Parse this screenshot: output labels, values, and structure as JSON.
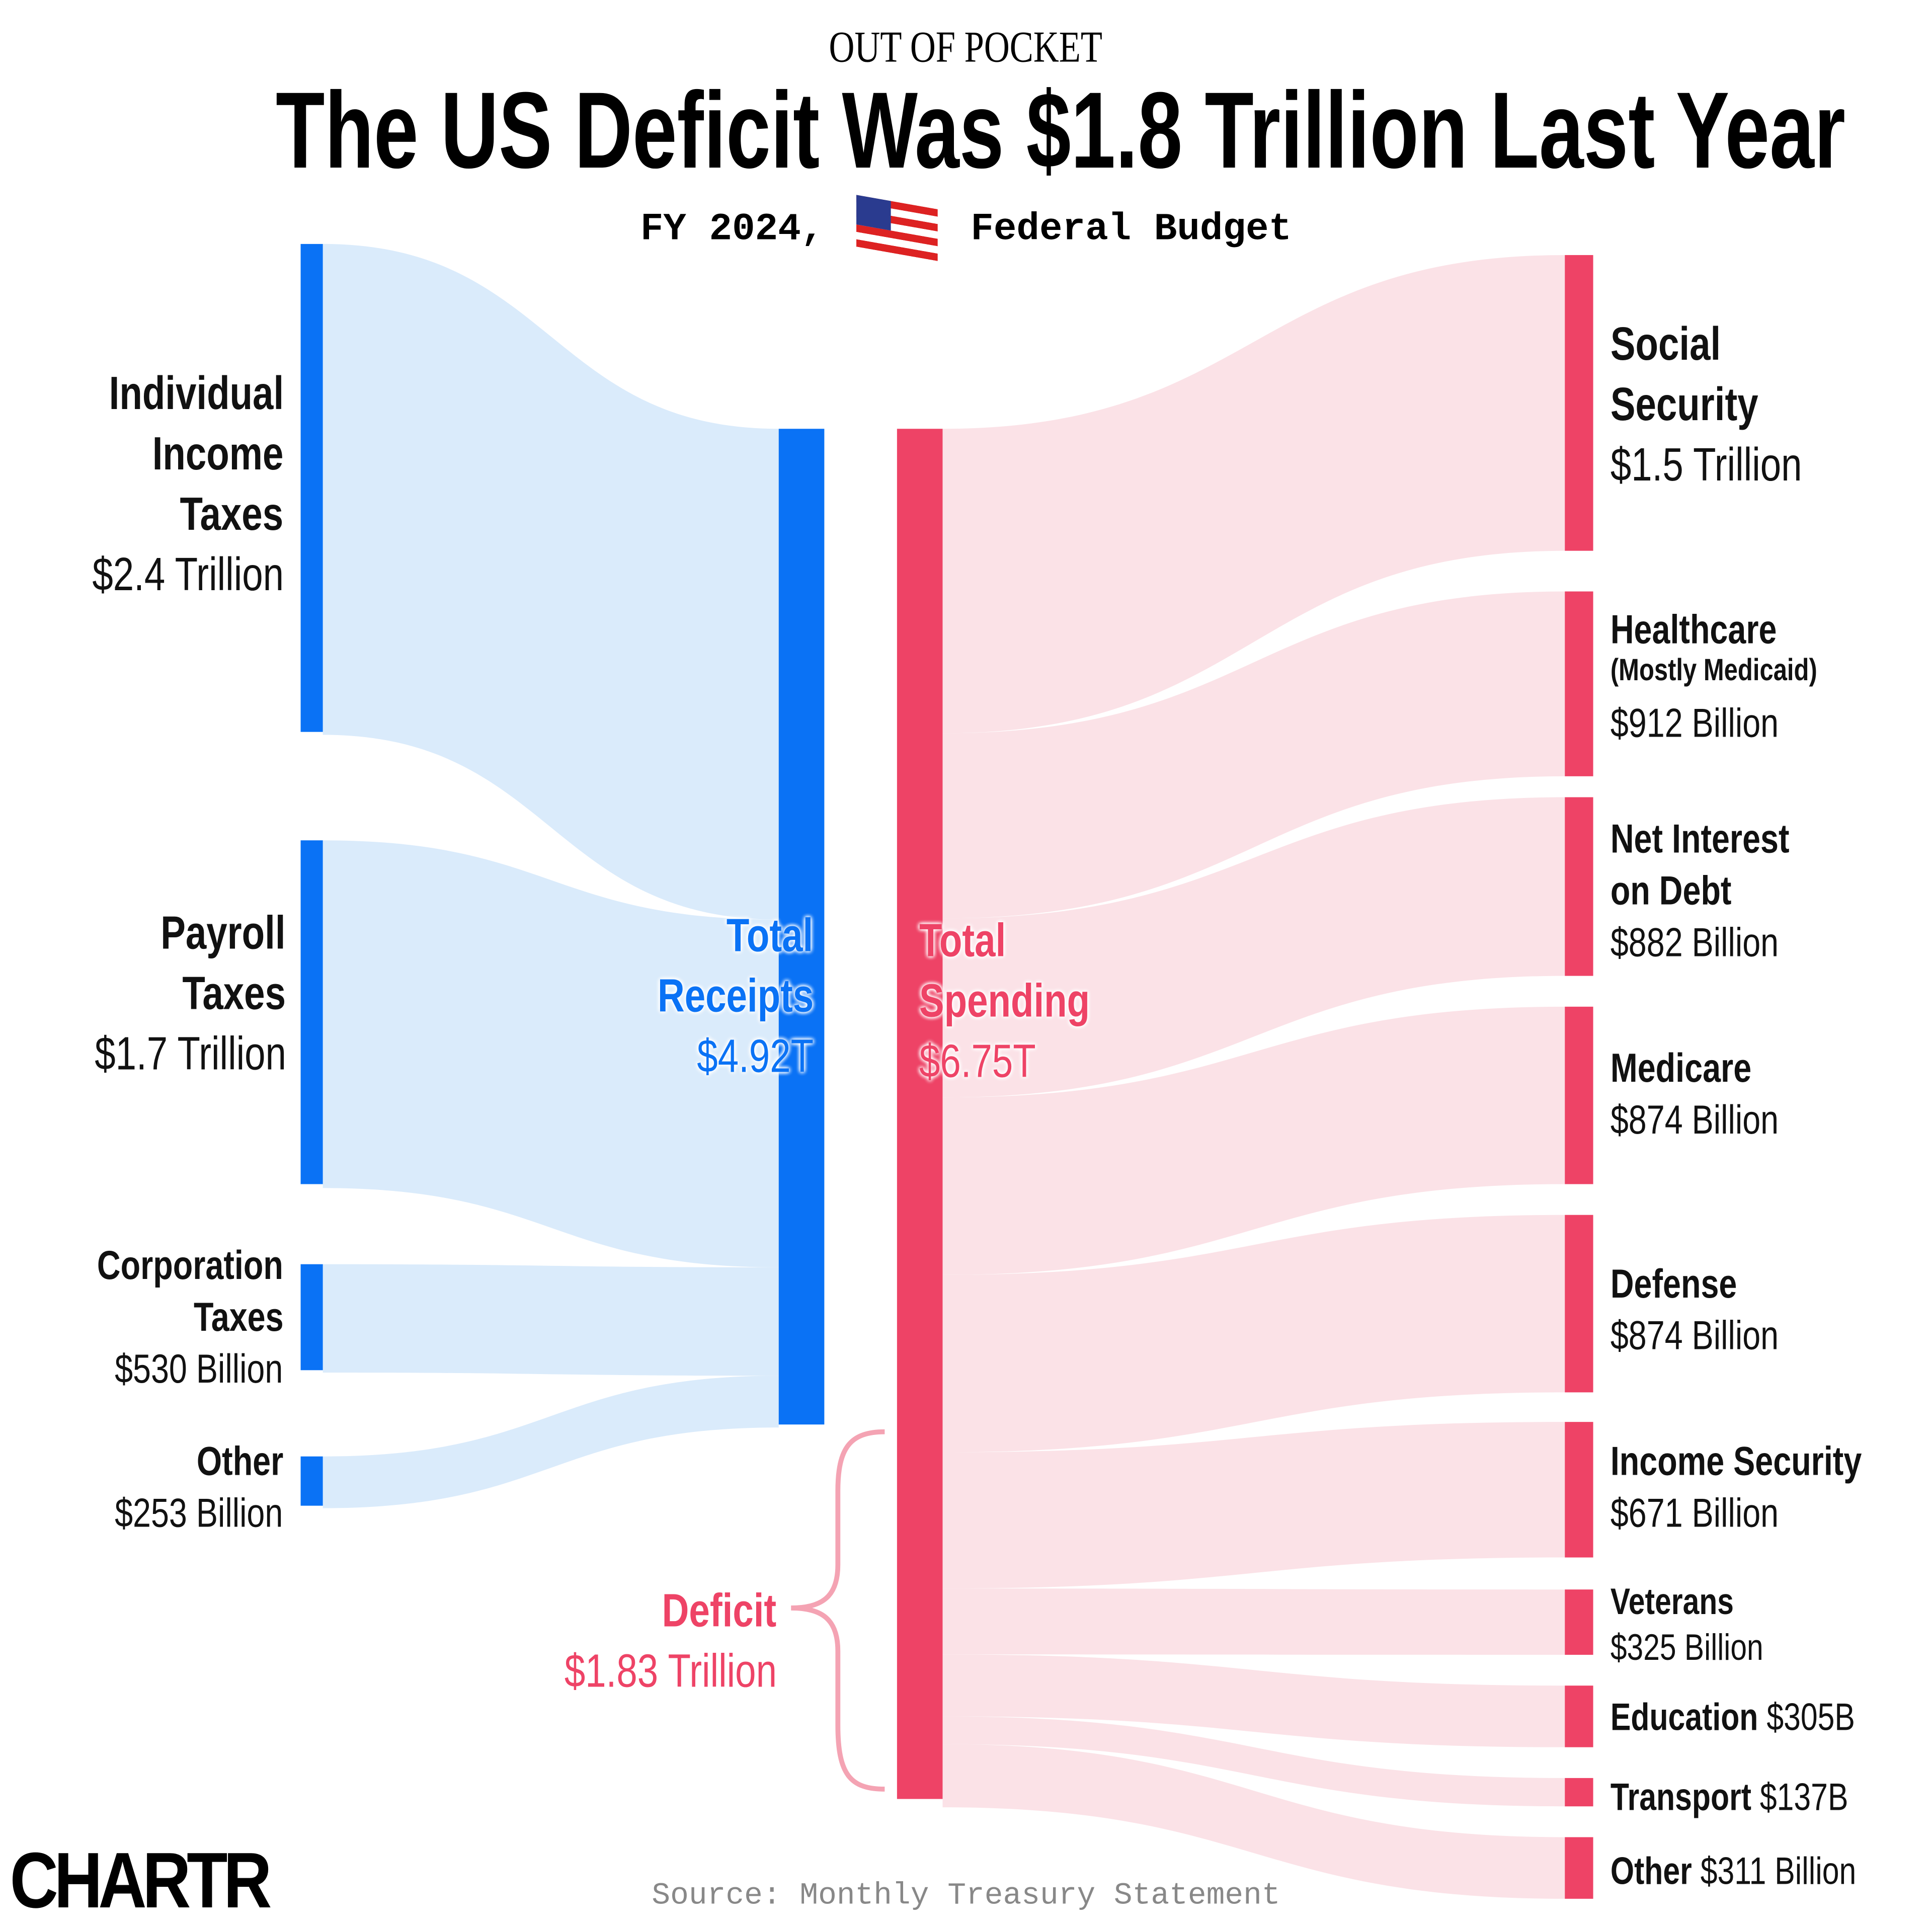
{
  "header": {
    "kicker": "OUT OF POCKET",
    "title": "The US Deficit Was $1.8 Trillion Last Year",
    "subtitle_pre": "FY 2024,",
    "subtitle_post": "Federal Budget",
    "flag_icon": "us-flag-icon"
  },
  "colors": {
    "receipts": "#0A72F5",
    "receipts_flow": "#DAEBFB",
    "spending": "#EE4366",
    "spending_flow": "#FBE2E7",
    "deficit": "#EE4366"
  },
  "chart_data": {
    "type": "sankey",
    "title": "The US Deficit Was $1.8 Trillion Last Year",
    "units": "USD billions",
    "sources": [
      {
        "name": "Individual Income Taxes",
        "value": 2400,
        "label_lines": [
          "Individual",
          "Income",
          "Taxes"
        ],
        "value_label": "$2.4 Trillion"
      },
      {
        "name": "Payroll Taxes",
        "value": 1700,
        "label_lines": [
          "Payroll",
          "Taxes"
        ],
        "value_label": "$1.7 Trillion"
      },
      {
        "name": "Corporation Taxes",
        "value": 530,
        "label_lines": [
          "Corporation",
          "Taxes"
        ],
        "value_label": "$530 Billion"
      },
      {
        "name": "Other",
        "value": 253,
        "label_lines": [
          "Other"
        ],
        "value_label": "$253 Billion"
      }
    ],
    "receipts": {
      "label_lines": [
        "Total",
        "Receipts"
      ],
      "value_label": "$4.92T",
      "value": 4920
    },
    "spending": {
      "label_lines": [
        "Total",
        "Spending"
      ],
      "value_label": "$6.75T",
      "value": 6750
    },
    "deficit": {
      "label": "Deficit",
      "value_label": "$1.83 Trillion",
      "value": 1830
    },
    "targets": [
      {
        "name": "Social Security",
        "value": 1500,
        "label_lines": [
          "Social",
          "Security"
        ],
        "value_label": "$1.5 Trillion"
      },
      {
        "name": "Healthcare",
        "value": 912,
        "label_lines": [
          "Healthcare"
        ],
        "note": "(Mostly Medicaid)",
        "value_label": "$912 Billion"
      },
      {
        "name": "Net Interest on Debt",
        "value": 882,
        "label_lines": [
          "Net Interest",
          "on Debt"
        ],
        "value_label": "$882 Billion"
      },
      {
        "name": "Medicare",
        "value": 874,
        "label_lines": [
          "Medicare"
        ],
        "value_label": "$874 Billion"
      },
      {
        "name": "Defense",
        "value": 874,
        "label_lines": [
          "Defense"
        ],
        "value_label": "$874 Billion"
      },
      {
        "name": "Income Security",
        "value": 671,
        "label_lines": [
          "Income Security"
        ],
        "value_label": "$671 Billion"
      },
      {
        "name": "Veterans",
        "value": 325,
        "label_lines": [
          "Veterans"
        ],
        "value_label": "$325 Billion"
      },
      {
        "name": "Education",
        "value": 305,
        "label_lines": [
          "Education"
        ],
        "value_label": "$305B"
      },
      {
        "name": "Transport",
        "value": 137,
        "label_lines": [
          "Transport"
        ],
        "value_label": "$137B"
      },
      {
        "name": "Other",
        "value": 311,
        "label_lines": [
          "Other"
        ],
        "value_label": "$311 Billion"
      }
    ]
  },
  "footer": {
    "source": "Source: Monthly Treasury Statement",
    "logo": "CHARTR"
  }
}
